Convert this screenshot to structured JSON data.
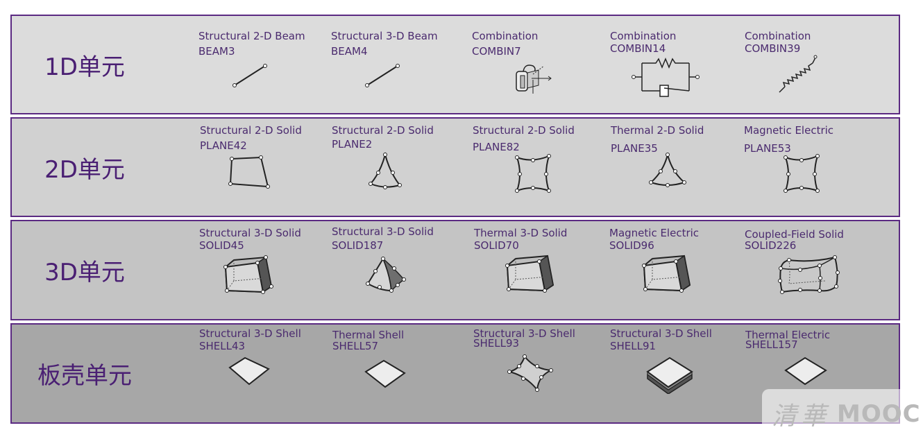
{
  "rows": [
    {
      "label": "1D单元",
      "bg": "#dcdcdc",
      "elements": [
        {
          "title": "Structural 2-D Beam",
          "code": "BEAM3",
          "icon": "beam-line-icon"
        },
        {
          "title": "Structural 3-D Beam",
          "code": "BEAM4",
          "icon": "beam-line-icon"
        },
        {
          "title": "Combination",
          "code": "COMBIN7",
          "icon": "revolute-joint-icon"
        },
        {
          "title": "Combination",
          "code": "COMBIN14",
          "icon": "spring-damper-icon"
        },
        {
          "title": "Combination",
          "code": "COMBIN39",
          "icon": "spring-coil-icon"
        }
      ]
    },
    {
      "label": "2D单元",
      "bg": "#d1d1d1",
      "elements": [
        {
          "title": "Structural 2-D Solid",
          "code": "PLANE42",
          "icon": "quad-element-icon"
        },
        {
          "title": "Structural 2-D Solid",
          "code": "PLANE2",
          "icon": "triangle-element-icon"
        },
        {
          "title": "Structural 2-D Solid",
          "code": "PLANE82",
          "icon": "curved-quad-element-icon"
        },
        {
          "title": "Thermal 2-D Solid",
          "code": "PLANE35",
          "icon": "triangle-element-icon"
        },
        {
          "title": "Magnetic Electric",
          "code": "PLANE53",
          "icon": "curved-quad-element-icon"
        }
      ]
    },
    {
      "label": "3D单元",
      "bg": "#c4c4c4",
      "elements": [
        {
          "title": "Structural 3-D Solid",
          "code": "SOLID45",
          "icon": "hexahedron-icon"
        },
        {
          "title": "Structural 3-D Solid",
          "code": "SOLID187",
          "icon": "tetrahedron-icon"
        },
        {
          "title": "Thermal 3-D Solid",
          "code": "SOLID70",
          "icon": "hexahedron-icon"
        },
        {
          "title": "Magnetic Electric",
          "code": "SOLID96",
          "icon": "hexahedron-icon"
        },
        {
          "title": "Coupled-Field Solid",
          "code": "SOLID226",
          "icon": "curved-hexahedron-icon"
        }
      ]
    },
    {
      "label": "板壳单元",
      "bg": "#a7a7a7",
      "elements": [
        {
          "title": "Structural 3-D Shell",
          "code": "SHELL43",
          "icon": "shell-diamond-icon"
        },
        {
          "title": "Thermal Shell",
          "code": "SHELL57",
          "icon": "shell-diamond-icon"
        },
        {
          "title": "Structural 3-D Shell",
          "code": "SHELL93",
          "icon": "curved-shell-icon"
        },
        {
          "title": "Structural 3-D Shell",
          "code": "SHELL91",
          "icon": "layered-shell-icon"
        },
        {
          "title": "Thermal Electric",
          "code": "SHELL157",
          "icon": "shell-diamond-icon"
        }
      ]
    }
  ],
  "watermark": {
    "cn": "清華",
    "en": "MOOC"
  },
  "colors": {
    "border": "#5b2a82",
    "label": "#4a1f73",
    "text": "#4a2a6e"
  }
}
